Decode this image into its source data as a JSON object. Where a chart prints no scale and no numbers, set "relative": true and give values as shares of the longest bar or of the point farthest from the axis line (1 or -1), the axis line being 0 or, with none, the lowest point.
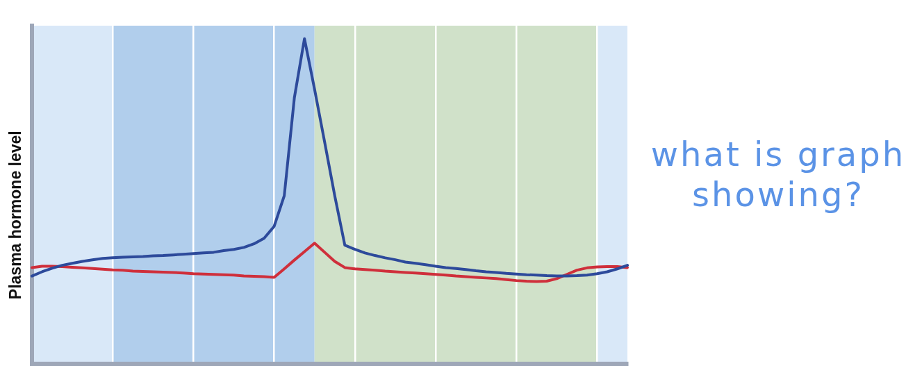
{
  "chart_data": {
    "type": "line",
    "ylabel": "Plasma hormone level",
    "relative": true,
    "marker": "none",
    "grid": "x",
    "categories": [
      null,
      null,
      null,
      null,
      null,
      null,
      null,
      null,
      null,
      null,
      null,
      null,
      null,
      null,
      null,
      null,
      null,
      null,
      null,
      null,
      null,
      null,
      null,
      null,
      null,
      null,
      null,
      null,
      null,
      null,
      null,
      null,
      null,
      null,
      null,
      null,
      null,
      null,
      null,
      null,
      null,
      null,
      null,
      null,
      null,
      null,
      null,
      null,
      null,
      null,
      null,
      null,
      null,
      null,
      null,
      null,
      null,
      null,
      null,
      null
    ],
    "series": [
      {
        "color": "#2d4a9b",
        "values": [
          0.27,
          0.283,
          0.294,
          0.303,
          0.309,
          0.315,
          0.32,
          0.324,
          0.326,
          0.328,
          0.329,
          0.33,
          0.332,
          0.333,
          0.335,
          0.337,
          0.339,
          0.341,
          0.343,
          0.348,
          0.352,
          0.358,
          0.369,
          0.386,
          0.423,
          0.517,
          0.818,
          1,
          0.845,
          0.682,
          0.517,
          0.365,
          0.352,
          0.341,
          0.333,
          0.326,
          0.32,
          0.313,
          0.309,
          0.305,
          0.3,
          0.296,
          0.293,
          0.29,
          0.286,
          0.283,
          0.281,
          0.278,
          0.276,
          0.274,
          0.273,
          0.271,
          0.27,
          0.27,
          0.271,
          0.273,
          0.277,
          0.283,
          0.292,
          0.303
        ]
      },
      {
        "color": "#cf2f3b",
        "values": [
          0.296,
          0.3,
          0.3,
          0.299,
          0.297,
          0.295,
          0.293,
          0.291,
          0.289,
          0.288,
          0.285,
          0.284,
          0.283,
          0.282,
          0.281,
          0.279,
          0.277,
          0.276,
          0.275,
          0.274,
          0.273,
          0.27,
          0.269,
          0.268,
          0.266,
          0.292,
          0.319,
          0.345,
          0.371,
          0.343,
          0.315,
          0.296,
          0.292,
          0.29,
          0.288,
          0.285,
          0.283,
          0.281,
          0.279,
          0.277,
          0.275,
          0.273,
          0.27,
          0.268,
          0.266,
          0.264,
          0.262,
          0.259,
          0.256,
          0.254,
          0.253,
          0.254,
          0.262,
          0.275,
          0.288,
          0.295,
          0.298,
          0.299,
          0.299,
          0.296
        ]
      }
    ],
    "annotations": [
      "what is graph showing?"
    ]
  }
}
